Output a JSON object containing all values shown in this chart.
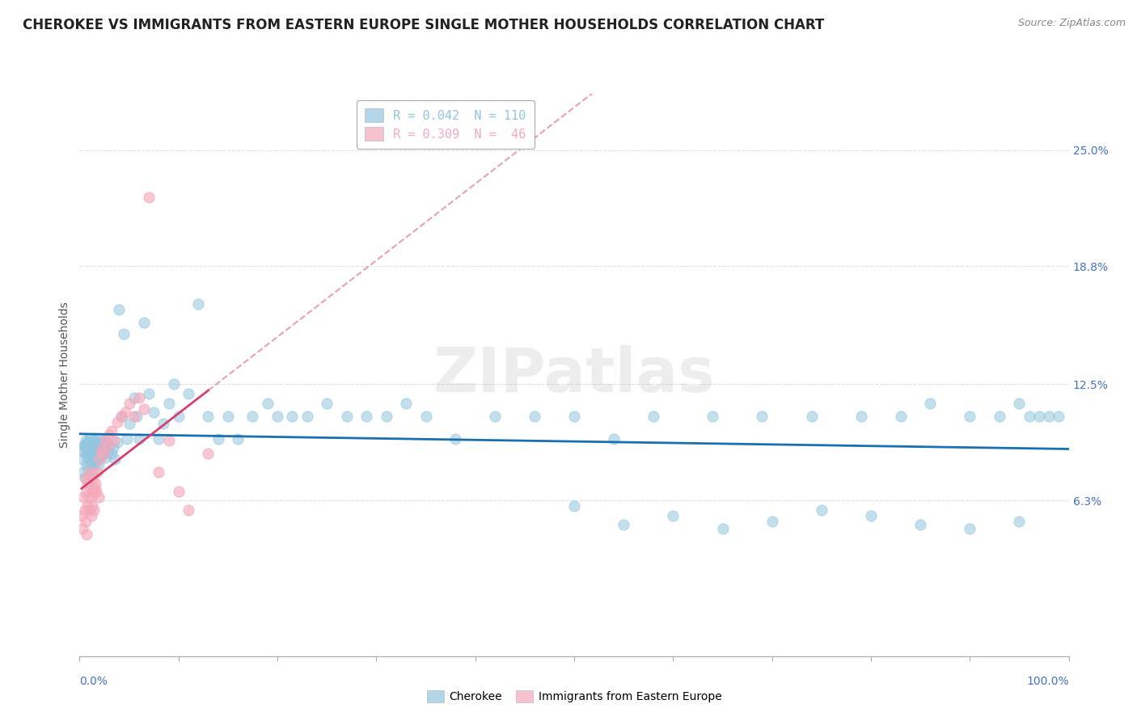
{
  "title": "CHEROKEE VS IMMIGRANTS FROM EASTERN EUROPE SINGLE MOTHER HOUSEHOLDS CORRELATION CHART",
  "source": "Source: ZipAtlas.com",
  "ylabel": "Single Mother Households",
  "ylabel_right_labels": [
    "6.3%",
    "12.5%",
    "18.8%",
    "25.0%"
  ],
  "ylabel_right_values": [
    0.063,
    0.125,
    0.188,
    0.25
  ],
  "watermark": "ZIPatlas",
  "legend_label_cherokee": "R = 0.042  N = 110",
  "legend_label_eastern": "R = 0.309  N =  46",
  "cherokee_color": "#92c5de",
  "eastern_europe_color": "#f4a9bb",
  "cherokee_line_color": "#1a6faf",
  "eastern_europe_line_color": "#d44070",
  "cherokee_scatter_x": [
    0.002,
    0.003,
    0.004,
    0.004,
    0.005,
    0.005,
    0.006,
    0.006,
    0.007,
    0.007,
    0.008,
    0.008,
    0.009,
    0.009,
    0.01,
    0.01,
    0.011,
    0.011,
    0.012,
    0.012,
    0.013,
    0.013,
    0.014,
    0.014,
    0.015,
    0.015,
    0.016,
    0.016,
    0.017,
    0.017,
    0.018,
    0.018,
    0.019,
    0.019,
    0.02,
    0.021,
    0.022,
    0.023,
    0.024,
    0.025,
    0.026,
    0.027,
    0.028,
    0.03,
    0.032,
    0.034,
    0.036,
    0.038,
    0.04,
    0.042,
    0.045,
    0.048,
    0.05,
    0.055,
    0.058,
    0.06,
    0.065,
    0.07,
    0.075,
    0.08,
    0.085,
    0.09,
    0.095,
    0.1,
    0.11,
    0.12,
    0.13,
    0.14,
    0.15,
    0.16,
    0.175,
    0.19,
    0.2,
    0.215,
    0.23,
    0.25,
    0.27,
    0.29,
    0.31,
    0.33,
    0.35,
    0.38,
    0.42,
    0.46,
    0.5,
    0.54,
    0.58,
    0.64,
    0.69,
    0.74,
    0.79,
    0.83,
    0.86,
    0.9,
    0.93,
    0.95,
    0.96,
    0.97,
    0.98,
    0.99,
    0.5,
    0.55,
    0.6,
    0.65,
    0.7,
    0.75,
    0.8,
    0.85,
    0.9,
    0.95
  ],
  "cherokee_scatter_y": [
    0.09,
    0.085,
    0.092,
    0.078,
    0.093,
    0.075,
    0.088,
    0.095,
    0.082,
    0.091,
    0.086,
    0.094,
    0.08,
    0.093,
    0.088,
    0.096,
    0.083,
    0.091,
    0.087,
    0.094,
    0.079,
    0.092,
    0.085,
    0.096,
    0.09,
    0.083,
    0.094,
    0.087,
    0.091,
    0.084,
    0.093,
    0.088,
    0.096,
    0.082,
    0.09,
    0.093,
    0.087,
    0.095,
    0.088,
    0.092,
    0.086,
    0.094,
    0.089,
    0.093,
    0.088,
    0.091,
    0.085,
    0.094,
    0.165,
    0.108,
    0.152,
    0.096,
    0.104,
    0.118,
    0.108,
    0.096,
    0.158,
    0.12,
    0.11,
    0.096,
    0.104,
    0.115,
    0.125,
    0.108,
    0.12,
    0.168,
    0.108,
    0.096,
    0.108,
    0.096,
    0.108,
    0.115,
    0.108,
    0.108,
    0.108,
    0.115,
    0.108,
    0.108,
    0.108,
    0.115,
    0.108,
    0.096,
    0.108,
    0.108,
    0.108,
    0.096,
    0.108,
    0.108,
    0.108,
    0.108,
    0.108,
    0.108,
    0.115,
    0.108,
    0.108,
    0.115,
    0.108,
    0.108,
    0.108,
    0.108,
    0.06,
    0.05,
    0.055,
    0.048,
    0.052,
    0.058,
    0.055,
    0.05,
    0.048,
    0.052
  ],
  "eastern_europe_scatter_x": [
    0.002,
    0.003,
    0.004,
    0.005,
    0.006,
    0.006,
    0.007,
    0.007,
    0.008,
    0.008,
    0.009,
    0.01,
    0.01,
    0.011,
    0.012,
    0.012,
    0.013,
    0.013,
    0.014,
    0.014,
    0.015,
    0.016,
    0.017,
    0.018,
    0.019,
    0.02,
    0.022,
    0.024,
    0.026,
    0.028,
    0.03,
    0.032,
    0.035,
    0.038,
    0.042,
    0.046,
    0.05,
    0.055,
    0.06,
    0.065,
    0.07,
    0.08,
    0.09,
    0.1,
    0.11,
    0.13
  ],
  "eastern_europe_scatter_y": [
    0.055,
    0.048,
    0.065,
    0.058,
    0.075,
    0.052,
    0.068,
    0.045,
    0.072,
    0.06,
    0.065,
    0.058,
    0.078,
    0.07,
    0.065,
    0.055,
    0.075,
    0.06,
    0.068,
    0.058,
    0.07,
    0.072,
    0.068,
    0.078,
    0.065,
    0.085,
    0.09,
    0.088,
    0.095,
    0.092,
    0.098,
    0.1,
    0.095,
    0.105,
    0.108,
    0.11,
    0.115,
    0.108,
    0.118,
    0.112,
    0.225,
    0.078,
    0.095,
    0.068,
    0.058,
    0.088
  ],
  "xlim": [
    0.0,
    1.0
  ],
  "ylim": [
    -0.02,
    0.28
  ],
  "background_color": "#ffffff",
  "grid_color": "#e0e0e0",
  "title_fontsize": 12,
  "axis_label_fontsize": 10,
  "tick_fontsize": 10
}
